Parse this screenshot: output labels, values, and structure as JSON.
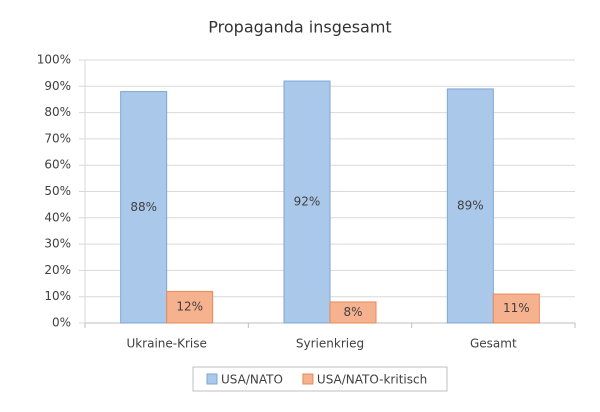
{
  "chart_data": {
    "type": "bar",
    "title": "Propaganda insgesamt",
    "categories": [
      "Ukraine-Krise",
      "Syrienkrieg",
      "Gesamt"
    ],
    "series": [
      {
        "name": "USA/NATO",
        "color": "#a9c8ea",
        "values": [
          88,
          92,
          89
        ],
        "value_labels": [
          "88%",
          "92%",
          "89%"
        ]
      },
      {
        "name": "USA/NATO-kritisch",
        "color": "#f6b28f",
        "values": [
          12,
          8,
          11
        ],
        "value_labels": [
          "12%",
          "8%",
          "11%"
        ]
      }
    ],
    "ylim": [
      0,
      100
    ],
    "yticks": [
      {
        "value": 0,
        "label": "0%"
      },
      {
        "value": 10,
        "label": "10%"
      },
      {
        "value": 20,
        "label": "20%"
      },
      {
        "value": 30,
        "label": "30%"
      },
      {
        "value": 40,
        "label": "40%"
      },
      {
        "value": 50,
        "label": "50%"
      },
      {
        "value": 60,
        "label": "60%"
      },
      {
        "value": 70,
        "label": "70%"
      },
      {
        "value": 80,
        "label": "80%"
      },
      {
        "value": 90,
        "label": "90%"
      },
      {
        "value": 100,
        "label": "100%"
      }
    ],
    "grid": true
  }
}
